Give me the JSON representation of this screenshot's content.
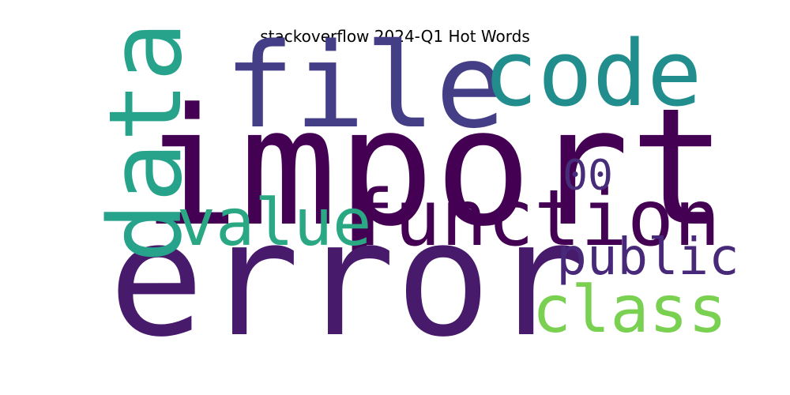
{
  "chart_data": {
    "type": "wordcloud",
    "title": "stackoverflow 2024-Q1 Hot Words",
    "words": [
      {
        "text": "import",
        "color": "#440154",
        "weight": 1.0
      },
      {
        "text": "error",
        "color": "#481a6c",
        "weight": 0.98
      },
      {
        "text": "file",
        "color": "#433e85",
        "weight": 0.72
      },
      {
        "text": "data",
        "color": "#26a38a",
        "weight": 0.62
      },
      {
        "text": "code",
        "color": "#218e8d",
        "weight": 0.56
      },
      {
        "text": "function",
        "color": "#440154",
        "weight": 0.48
      },
      {
        "text": "value",
        "color": "#2aa884",
        "weight": 0.4
      },
      {
        "text": "class",
        "color": "#7ad151",
        "weight": 0.4
      },
      {
        "text": "public",
        "color": "#482878",
        "weight": 0.31
      },
      {
        "text": "00",
        "color": "#472c7a",
        "weight": 0.26
      }
    ]
  }
}
